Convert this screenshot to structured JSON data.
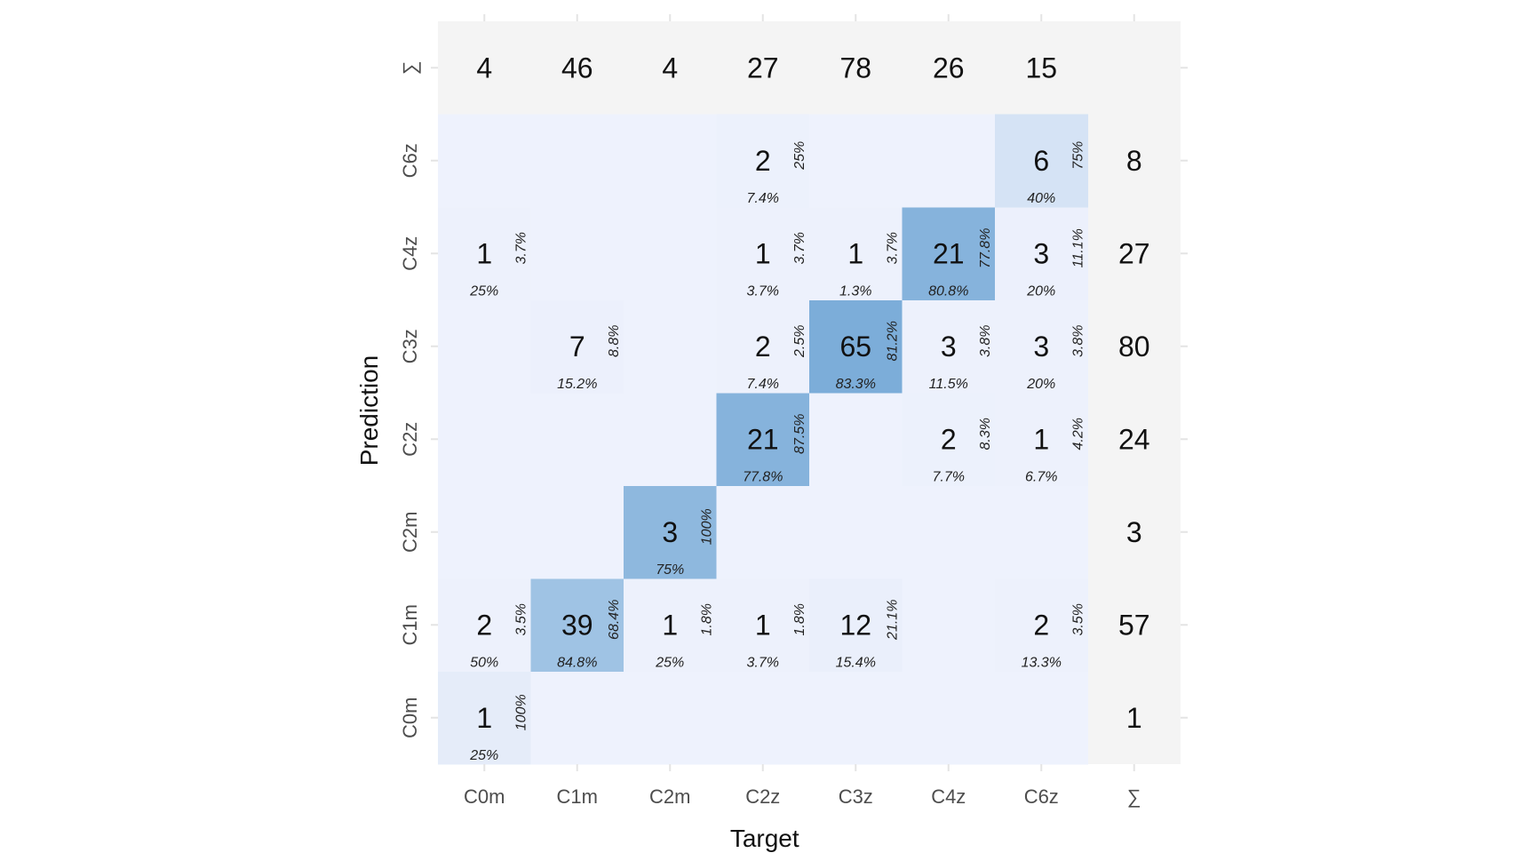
{
  "chart_data": {
    "type": "heatmap",
    "subtype": "confusion-matrix",
    "xlabel": "Target",
    "ylabel": "Prediction",
    "x_categories": [
      "C0m",
      "C1m",
      "C2m",
      "C2z",
      "C3z",
      "C4z",
      "C6z"
    ],
    "y_categories": [
      "C0m",
      "C1m",
      "C2m",
      "C2z",
      "C3z",
      "C4z",
      "C6z"
    ],
    "sum_symbol": "∑",
    "cells": [
      {
        "target": "C0m",
        "prediction": "C0m",
        "count": "1",
        "row_pct": "100%",
        "col_pct": "25%"
      },
      {
        "target": "C0m",
        "prediction": "C1m",
        "count": "2",
        "row_pct": "3.5%",
        "col_pct": "50%"
      },
      {
        "target": "C0m",
        "prediction": "C4z",
        "count": "1",
        "row_pct": "3.7%",
        "col_pct": "25%"
      },
      {
        "target": "C1m",
        "prediction": "C1m",
        "count": "39",
        "row_pct": "68.4%",
        "col_pct": "84.8%"
      },
      {
        "target": "C1m",
        "prediction": "C3z",
        "count": "7",
        "row_pct": "8.8%",
        "col_pct": "15.2%"
      },
      {
        "target": "C2m",
        "prediction": "C1m",
        "count": "1",
        "row_pct": "1.8%",
        "col_pct": "25%"
      },
      {
        "target": "C2m",
        "prediction": "C2m",
        "count": "3",
        "row_pct": "100%",
        "col_pct": "75%"
      },
      {
        "target": "C2z",
        "prediction": "C1m",
        "count": "1",
        "row_pct": "1.8%",
        "col_pct": "3.7%"
      },
      {
        "target": "C2z",
        "prediction": "C2z",
        "count": "21",
        "row_pct": "87.5%",
        "col_pct": "77.8%"
      },
      {
        "target": "C2z",
        "prediction": "C3z",
        "count": "2",
        "row_pct": "2.5%",
        "col_pct": "7.4%"
      },
      {
        "target": "C2z",
        "prediction": "C4z",
        "count": "1",
        "row_pct": "3.7%",
        "col_pct": "3.7%"
      },
      {
        "target": "C2z",
        "prediction": "C6z",
        "count": "2",
        "row_pct": "25%",
        "col_pct": "7.4%"
      },
      {
        "target": "C3z",
        "prediction": "C1m",
        "count": "12",
        "row_pct": "21.1%",
        "col_pct": "15.4%"
      },
      {
        "target": "C3z",
        "prediction": "C3z",
        "count": "65",
        "row_pct": "81.2%",
        "col_pct": "83.3%"
      },
      {
        "target": "C3z",
        "prediction": "C4z",
        "count": "1",
        "row_pct": "3.7%",
        "col_pct": "1.3%"
      },
      {
        "target": "C4z",
        "prediction": "C2z",
        "count": "2",
        "row_pct": "8.3%",
        "col_pct": "7.7%"
      },
      {
        "target": "C4z",
        "prediction": "C3z",
        "count": "3",
        "row_pct": "3.8%",
        "col_pct": "11.5%"
      },
      {
        "target": "C4z",
        "prediction": "C4z",
        "count": "21",
        "row_pct": "77.8%",
        "col_pct": "80.8%"
      },
      {
        "target": "C6z",
        "prediction": "C1m",
        "count": "2",
        "row_pct": "3.5%",
        "col_pct": "13.3%"
      },
      {
        "target": "C6z",
        "prediction": "C2z",
        "count": "1",
        "row_pct": "4.2%",
        "col_pct": "6.7%"
      },
      {
        "target": "C6z",
        "prediction": "C3z",
        "count": "3",
        "row_pct": "3.8%",
        "col_pct": "20%"
      },
      {
        "target": "C6z",
        "prediction": "C4z",
        "count": "3",
        "row_pct": "11.1%",
        "col_pct": "20%"
      },
      {
        "target": "C6z",
        "prediction": "C6z",
        "count": "6",
        "row_pct": "75%",
        "col_pct": "40%"
      }
    ],
    "column_totals": [
      "4",
      "46",
      "4",
      "27",
      "78",
      "26",
      "15"
    ],
    "row_totals": [
      "1",
      "57",
      "3",
      "24",
      "80",
      "27",
      "8"
    ],
    "colors": {
      "empty_cell": "#eef2fd",
      "sum_band": "#f4f4f4",
      "scale_low": "#edf1fc",
      "scale_high": "#3a86c4",
      "text": "#111111",
      "tick_text": "#4d4d4d",
      "tick_line": "#e4e4e4"
    }
  }
}
